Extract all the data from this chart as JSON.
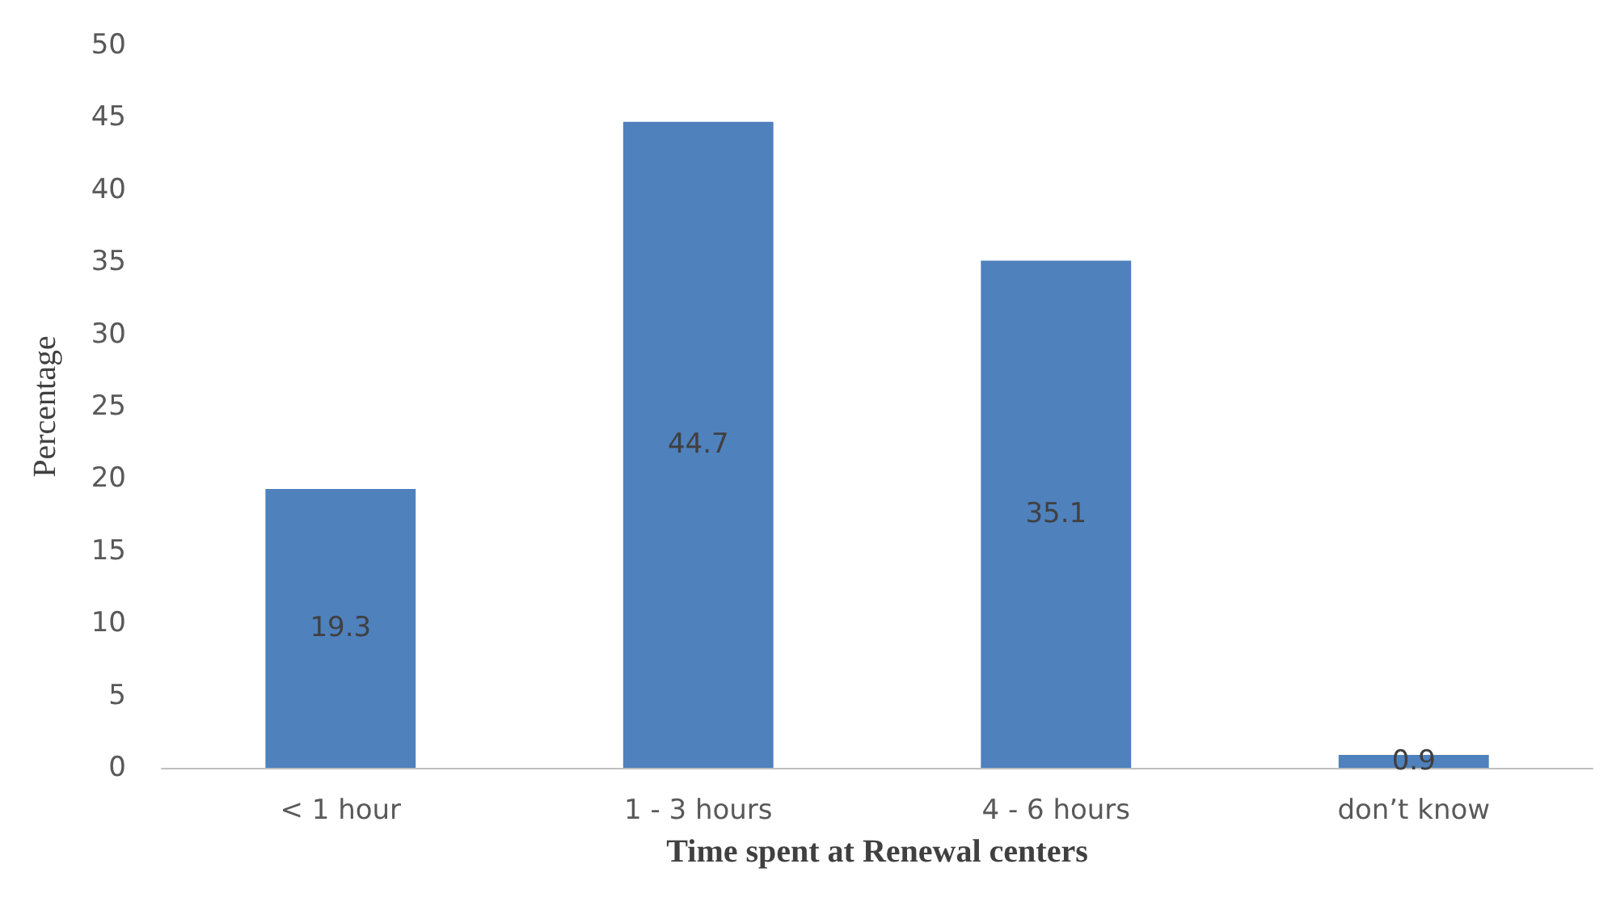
{
  "chart_data": {
    "type": "bar",
    "xlabel": "Time spent at Renewal centers",
    "ylabel": "Percentage",
    "categories": [
      "< 1 hour",
      "1 - 3 hours",
      "4 - 6 hours",
      "don’t know"
    ],
    "values": [
      19.3,
      44.7,
      35.1,
      0.9
    ],
    "color": "#4f81bd",
    "ylim": [
      0,
      50
    ],
    "yticks": [
      0,
      5,
      10,
      15,
      20,
      25,
      30,
      35,
      40,
      45,
      50
    ],
    "grid": false,
    "data_labels": true
  }
}
